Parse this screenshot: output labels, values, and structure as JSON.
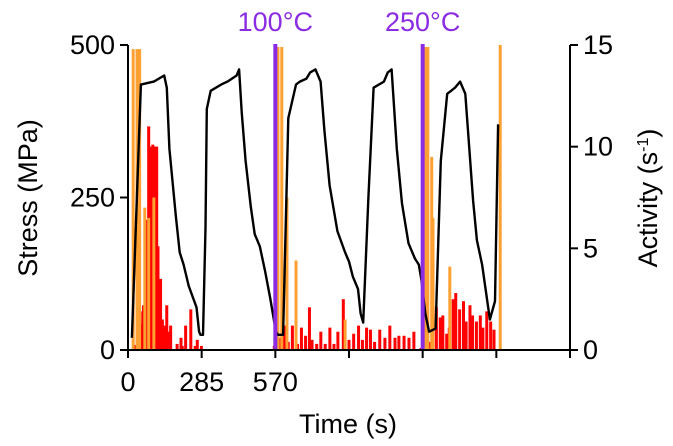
{
  "chart_data": {
    "type": "line",
    "title": "",
    "xlabel": "Time (s)",
    "ylabel_left": "Stress (MPa)",
    "ylabel_right": {
      "text": "Activity (s",
      "sup": "-1",
      "close": ")"
    },
    "xlim": [
      0,
      1710
    ],
    "ylim_left": [
      0,
      500
    ],
    "ylim_right": [
      0,
      15
    ],
    "x_ticks": [
      0,
      285,
      570
    ],
    "y_ticks_left": [
      0,
      250,
      500
    ],
    "y_ticks_right": [
      0,
      5,
      10,
      15
    ],
    "grid": false,
    "colors": {
      "stress": "#000000",
      "activity_high": "#FFA033",
      "activity_low": "#FF0000",
      "temperature_marker": "#8B2BE2"
    },
    "temperature_markers": [
      {
        "x": 570,
        "label": "100°C"
      },
      {
        "x": 1140,
        "label": "250°C"
      }
    ],
    "series": [
      {
        "axis": "left",
        "style": "line",
        "x": [
          15,
          30,
          50,
          100,
          140,
          150,
          160,
          185,
          200,
          215,
          235,
          265,
          275,
          280,
          290,
          300,
          305,
          320,
          340,
          360,
          385,
          420,
          430,
          440,
          455,
          475,
          490,
          510,
          530,
          550,
          572,
          580,
          585,
          600,
          620,
          650,
          665,
          690,
          705,
          725,
          745,
          760,
          780,
          810,
          840,
          855,
          870,
          890,
          900,
          910,
          930,
          950,
          990,
          1005,
          1020,
          1040,
          1060,
          1085,
          1110,
          1125,
          1135,
          1150,
          1165,
          1190,
          1210,
          1235,
          1250,
          1265,
          1285,
          1305,
          1335,
          1350,
          1360,
          1370,
          1385,
          1400,
          1420,
          1432
        ],
        "values": [
          20,
          200,
          435,
          440,
          450,
          430,
          330,
          220,
          160,
          140,
          105,
          70,
          30,
          25,
          25,
          200,
          395,
          425,
          430,
          435,
          440,
          450,
          460,
          390,
          310,
          235,
          190,
          170,
          130,
          85,
          30,
          25,
          25,
          25,
          380,
          435,
          440,
          445,
          455,
          460,
          440,
          360,
          270,
          195,
          160,
          145,
          120,
          100,
          60,
          45,
          250,
          430,
          440,
          455,
          460,
          330,
          240,
          175,
          150,
          140,
          115,
          60,
          30,
          35,
          310,
          420,
          425,
          430,
          440,
          420,
          245,
          180,
          160,
          140,
          95,
          50,
          80,
          370
        ]
      },
      {
        "axis": "right",
        "style": "bars",
        "x": [
          26,
          46,
          50,
          54,
          57,
          60,
          66,
          75,
          80,
          88,
          96,
          101,
          106,
          111,
          116,
          126,
          133,
          141,
          150,
          155,
          165,
          190,
          205,
          210,
          223,
          243,
          260,
          268,
          284,
          566,
          570,
          576,
          592,
          604,
          620,
          636,
          656,
          671,
          687,
          702,
          712,
          730,
          746,
          763,
          781,
          797,
          812,
          833,
          855,
          873,
          892,
          907,
          923,
          938,
          954,
          974,
          994,
          1013,
          1033,
          1048,
          1068,
          1087,
          1106,
          1133,
          1141,
          1143,
          1153,
          1168,
          1178,
          1193,
          1208,
          1218,
          1233,
          1243,
          1258,
          1268,
          1283,
          1298,
          1308,
          1323,
          1333,
          1348,
          1363,
          1373,
          1388,
          1403,
          1416
        ],
        "values": [
          0.25,
          0.3,
          0.6,
          1.3,
          1.9,
          2.2,
          2.5,
          6.4,
          11.0,
          10.0,
          10.1,
          7.0,
          10.0,
          10.0,
          5.1,
          3.5,
          1.5,
          1.2,
          2.2,
          0.9,
          1.2,
          0.3,
          0.6,
          0.2,
          1.2,
          2.0,
          0.2,
          0.5,
          0.2,
          0.2,
          0.3,
          0.4,
          0.6,
          1.2,
          0.4,
          1.2,
          0.3,
          1.1,
          0.7,
          2.1,
          0.5,
          0.3,
          0.9,
          0.3,
          1.1,
          0.3,
          0.9,
          2.5,
          0.5,
          0.8,
          1.2,
          0.5,
          1.1,
          1.0,
          0.4,
          1.0,
          0.6,
          1.2,
          0.6,
          0.7,
          0.7,
          0.6,
          0.9,
          0.1,
          0.3,
          0.2,
          0.5,
          0.4,
          1.3,
          2.1,
          1.6,
          1.7,
          0.8,
          1.1,
          2.5,
          2.8,
          2.0,
          2.4,
          1.4,
          2.2,
          1.7,
          1.4,
          1.7,
          1.1,
          1.9,
          1.4,
          1.0
        ]
      },
      {
        "axis": "right",
        "style": "spikes",
        "x": [
          20,
          35,
          45,
          65,
          80,
          100,
          580,
          595,
          615,
          650,
          840,
          1140,
          1148,
          1156,
          1160,
          1175,
          1180,
          1245,
          1440
        ],
        "values": [
          14.8,
          14.8,
          14.8,
          7.0,
          6.5,
          7.5,
          14.9,
          14.9,
          7.5,
          4.4,
          1.5,
          14.9,
          14.9,
          14.9,
          14.9,
          9.5,
          6.5,
          4.1,
          15.0
        ]
      }
    ]
  }
}
